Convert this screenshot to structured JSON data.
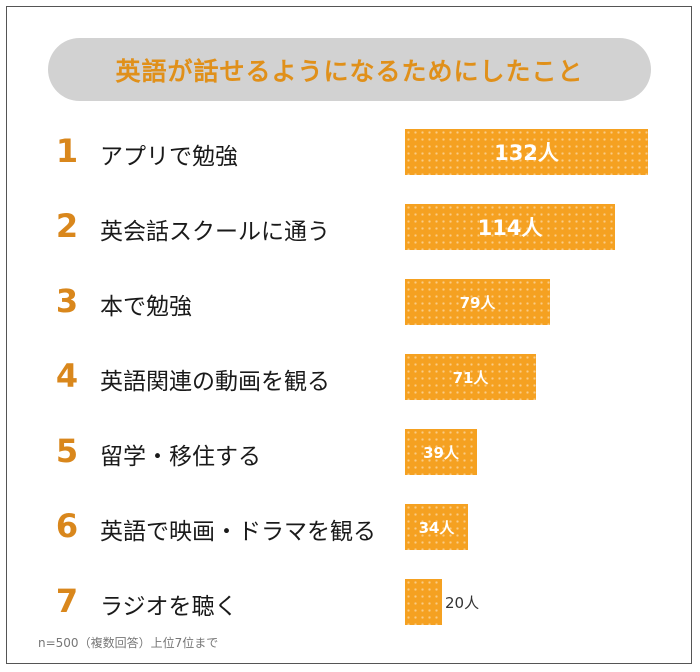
{
  "chart_data": {
    "type": "bar",
    "title": "英語が話せるようになるためにしたこと",
    "ranks": [
      "1",
      "2",
      "3",
      "4",
      "5",
      "6",
      "7"
    ],
    "categories": [
      "アプリで勉強",
      "英会話スクールに通う",
      "本で勉強",
      "英語関連の動画を観る",
      "留学・移住する",
      "英語で映画・ドラマを観る",
      "ラジオを聴く"
    ],
    "values": [
      132,
      114,
      79,
      71,
      39,
      34,
      20
    ],
    "value_labels": [
      "132人",
      "114人",
      "79人",
      "71人",
      "39人",
      "34人",
      "20人"
    ],
    "unit": "人",
    "footnote": "n=500（複数回答）上位7位まで",
    "colors": {
      "bar": "#f5a121",
      "rank": "#d9871c",
      "title": "#e0901a",
      "title_bg": "#d2d2d2"
    }
  }
}
